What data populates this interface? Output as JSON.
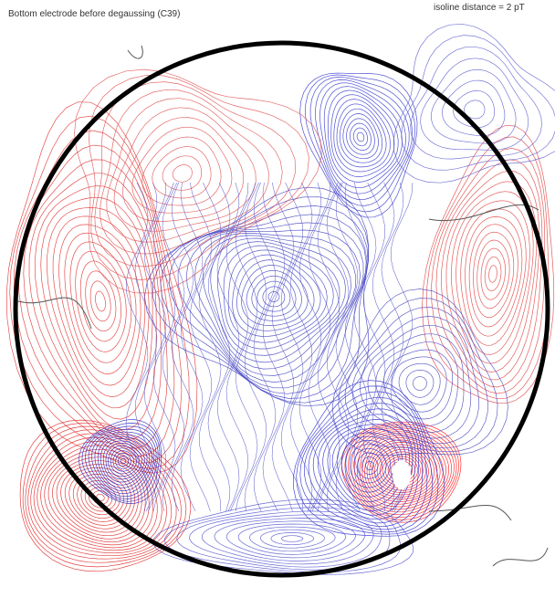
{
  "header": {
    "title": "Bottom electrode before degaussing (C39)",
    "annotation": "isoline distance = 2 pT"
  }
}
